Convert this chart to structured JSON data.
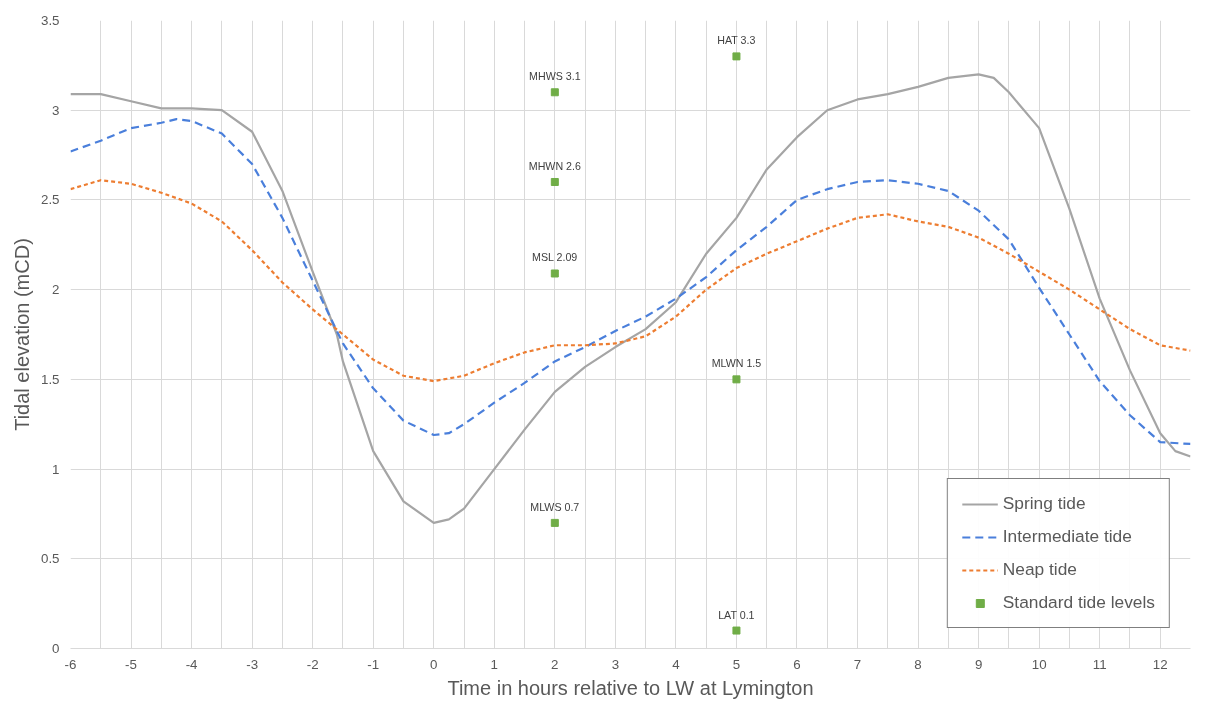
{
  "chart_data": {
    "type": "line",
    "xlabel": "Time in hours relative to LW at Lymington",
    "ylabel": "Tidal elevation (mCD)",
    "xlim": [
      -6,
      12.5
    ],
    "xticks": [
      -6,
      -5,
      -4,
      -3,
      -2,
      -1,
      0,
      1,
      2,
      3,
      4,
      5,
      6,
      7,
      8,
      9,
      10,
      11,
      12
    ],
    "ylim": [
      0,
      3.5
    ],
    "yticks": [
      0,
      0.5,
      1,
      1.5,
      2,
      2.5,
      3,
      3.5
    ],
    "grid": true,
    "legend": "bottom right",
    "series": [
      {
        "name": "Spring tide",
        "color": "#a5a5a5",
        "line_style": "solid",
        "x": [
          -6,
          -5.5,
          -5,
          -4.5,
          -4,
          -3.5,
          -3,
          -2.5,
          -2,
          -1.6,
          -1.5,
          -1,
          -0.5,
          0,
          0.25,
          0.5,
          1,
          1.5,
          2,
          2.5,
          3,
          3.5,
          4,
          4.5,
          5,
          5.5,
          6,
          6.5,
          7,
          7.5,
          8,
          8.5,
          9,
          9.25,
          9.5,
          10,
          10.5,
          11,
          11.5,
          12,
          12.25,
          12.5
        ],
        "values": [
          3.09,
          3.09,
          3.05,
          3.01,
          3.01,
          3.0,
          2.88,
          2.55,
          2.1,
          1.75,
          1.6,
          1.1,
          0.82,
          0.7,
          0.72,
          0.78,
          1.0,
          1.22,
          1.43,
          1.57,
          1.68,
          1.78,
          1.93,
          2.2,
          2.4,
          2.67,
          2.85,
          3.0,
          3.06,
          3.09,
          3.13,
          3.18,
          3.2,
          3.18,
          3.1,
          2.9,
          2.45,
          1.95,
          1.55,
          1.2,
          1.1,
          1.07
        ]
      },
      {
        "name": "Intermediate tide",
        "color": "#4a7fdb",
        "line_style": "dashed",
        "x": [
          -6,
          -5.5,
          -5,
          -4.5,
          -4.25,
          -4,
          -3.5,
          -3,
          -2.5,
          -2,
          -1.5,
          -1,
          -0.5,
          0,
          0.25,
          0.5,
          1,
          1.5,
          2,
          2.5,
          3,
          3.5,
          4,
          4.5,
          5,
          5.5,
          6,
          6.5,
          7,
          7.5,
          8,
          8.5,
          9,
          9.5,
          10,
          10.5,
          11,
          11.5,
          12,
          12.5
        ],
        "values": [
          2.77,
          2.83,
          2.9,
          2.93,
          2.95,
          2.94,
          2.87,
          2.7,
          2.4,
          2.05,
          1.7,
          1.45,
          1.27,
          1.19,
          1.2,
          1.25,
          1.37,
          1.48,
          1.6,
          1.68,
          1.77,
          1.85,
          1.95,
          2.07,
          2.22,
          2.35,
          2.5,
          2.56,
          2.6,
          2.61,
          2.59,
          2.55,
          2.44,
          2.28,
          2.01,
          1.75,
          1.49,
          1.3,
          1.15,
          1.14
        ]
      },
      {
        "name": "Neap tide",
        "color": "#ed7d31",
        "line_style": "dotted",
        "x": [
          -6,
          -5.5,
          -5,
          -4.5,
          -4,
          -3.5,
          -3,
          -2.5,
          -2,
          -1.5,
          -1,
          -0.5,
          0,
          0.5,
          1,
          1.5,
          2,
          2.5,
          3,
          3.5,
          4,
          4.5,
          5,
          5.5,
          6,
          6.5,
          7,
          7.5,
          8,
          8.5,
          9,
          9.5,
          10,
          10.5,
          11,
          11.5,
          12,
          12.5
        ],
        "values": [
          2.56,
          2.61,
          2.59,
          2.54,
          2.48,
          2.38,
          2.22,
          2.04,
          1.89,
          1.75,
          1.61,
          1.52,
          1.49,
          1.52,
          1.59,
          1.65,
          1.69,
          1.69,
          1.7,
          1.74,
          1.85,
          2.0,
          2.12,
          2.2,
          2.27,
          2.34,
          2.4,
          2.42,
          2.38,
          2.35,
          2.29,
          2.2,
          2.1,
          2.0,
          1.89,
          1.78,
          1.69,
          1.66
        ]
      },
      {
        "name": "Standard tide levels",
        "type": "scatter",
        "marker": "square",
        "color": "#70ad47",
        "x": [
          2,
          2,
          2,
          2,
          5,
          5,
          5
        ],
        "values": [
          3.1,
          2.6,
          2.09,
          0.7,
          3.3,
          1.5,
          0.1
        ],
        "value_labels": [
          "MHWS 3.1",
          "MHWN 2.6",
          "MSL 2.09",
          "MLWS 0.7",
          "HAT 3.3",
          "MLWN 1.5",
          "LAT 0.1"
        ]
      }
    ]
  }
}
